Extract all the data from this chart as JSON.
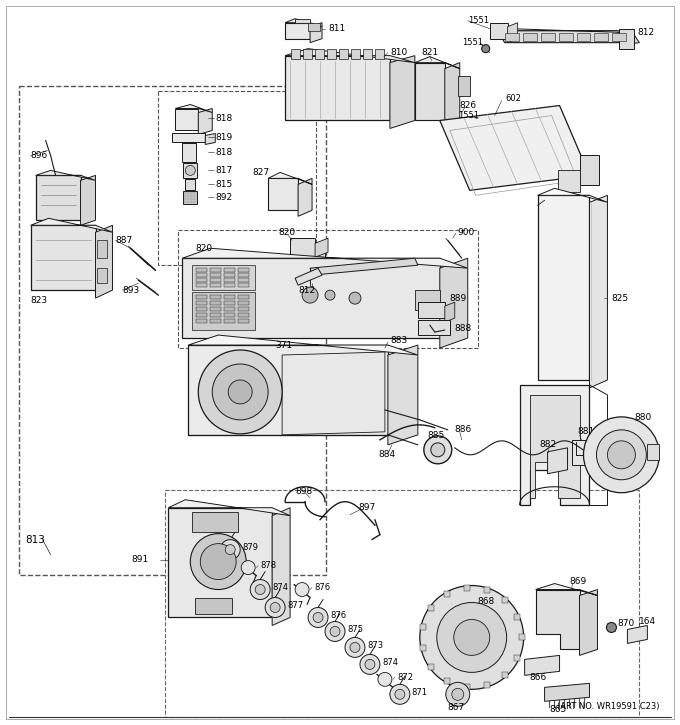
{
  "art_no": "(ART NO. WR19591 C23)",
  "bg_color": "#ffffff",
  "line_color": "#1a1a1a",
  "text_color": "#000000",
  "figsize": [
    6.8,
    7.25
  ],
  "dpi": 100
}
